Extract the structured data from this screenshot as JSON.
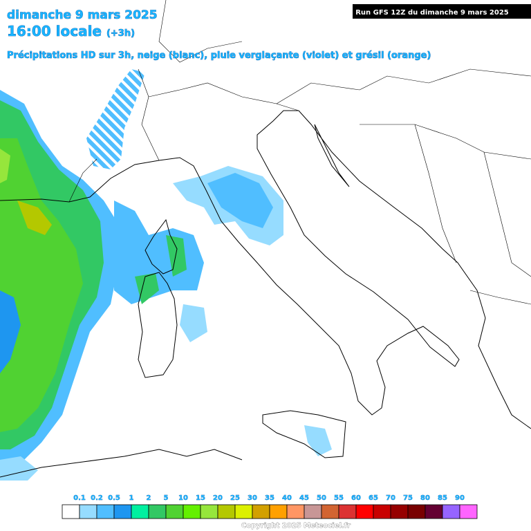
{
  "header": {
    "date": "dimanche 9 mars 2025",
    "time": "16:00 locale",
    "lead": "(+3h)",
    "subtitle": "Précipitations HD sur 3h, neige (blanc), pluie verglaçante (violet) et grésil (orange)",
    "run": "Run GFS 12Z du dimanche 9 mars 2025"
  },
  "legend": {
    "labels": [
      "0.1",
      "0.2",
      "0.5",
      "1",
      "2",
      "5",
      "10",
      "15",
      "20",
      "25",
      "30",
      "35",
      "40",
      "45",
      "50",
      "55",
      "60",
      "65",
      "70",
      "75",
      "80",
      "85",
      "90"
    ],
    "colors": [
      "#ffffff",
      "#96dcff",
      "#50beff",
      "#1e96f0",
      "#00f0a0",
      "#32c864",
      "#50d232",
      "#64f000",
      "#96e63c",
      "#b4c800",
      "#dcf000",
      "#d2a000",
      "#ffa000",
      "#ff9664",
      "#c89696",
      "#d26432",
      "#dc3232",
      "#ff0000",
      "#c80000",
      "#960000",
      "#780000",
      "#640032",
      "#9664ff",
      "#ff64ff"
    ]
  },
  "footer": {
    "copyright": "Copyright 2025 Meteociel.fr"
  }
}
